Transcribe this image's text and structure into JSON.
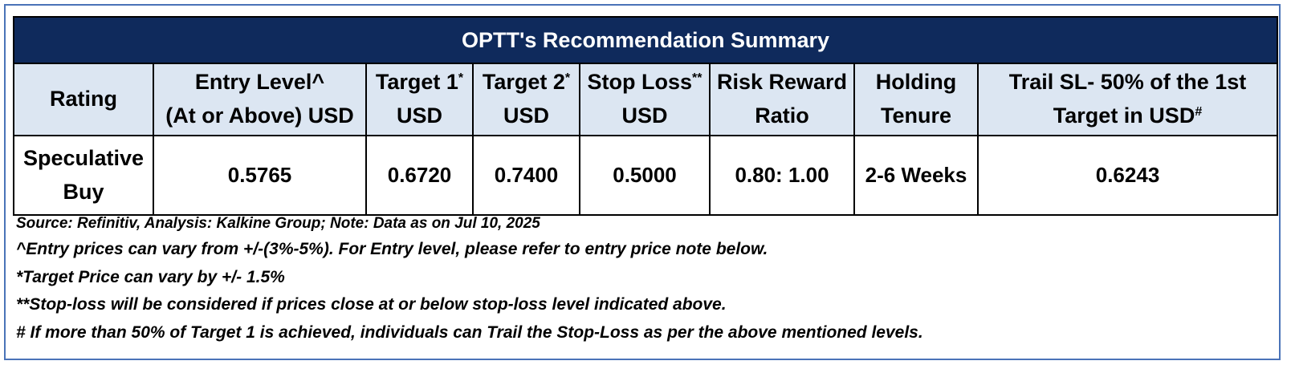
{
  "table": {
    "title": "OPTT's Recommendation Summary",
    "headers": [
      {
        "line1": "Rating",
        "line2": "",
        "mark": ""
      },
      {
        "line1": "Entry Level^",
        "line2": "(At or Above) USD",
        "mark": ""
      },
      {
        "line1": "Target 1",
        "line2": "USD",
        "mark": "*"
      },
      {
        "line1": "Target 2",
        "line2": "USD",
        "mark": "*"
      },
      {
        "line1": "Stop Loss",
        "line2": "USD",
        "mark": "**"
      },
      {
        "line1": "Risk Reward",
        "line2": "Ratio",
        "mark": ""
      },
      {
        "line1": "Holding",
        "line2": "Tenure",
        "mark": ""
      },
      {
        "line1": "Trail SL- 50% of the 1st",
        "line2": "Target in USD",
        "mark": "#"
      }
    ],
    "values": {
      "rating_line1": "Speculative",
      "rating_line2": "Buy",
      "entry_level": "0.5765",
      "target_1": "0.6720",
      "target_2": "0.7400",
      "stop_loss": "0.5000",
      "risk_reward": "0.80: 1.00",
      "holding_tenure": "2-6 Weeks",
      "trail_sl": "0.6243"
    }
  },
  "notes": {
    "source": "Source: Refinitiv, Analysis: Kalkine Group; Note: Data as on Jul 10, 2025",
    "entry": "^Entry prices can vary from +/-(3%-5%). For Entry level, please refer to entry price note below.",
    "target": "*Target Price can vary by +/- 1.5%",
    "stoploss": "**Stop-loss will be considered if prices close at or below stop-loss level indicated above.",
    "trail": "# If more than 50% of Target 1 is achieved, individuals can Trail the Stop-Loss as per the above mentioned levels."
  }
}
